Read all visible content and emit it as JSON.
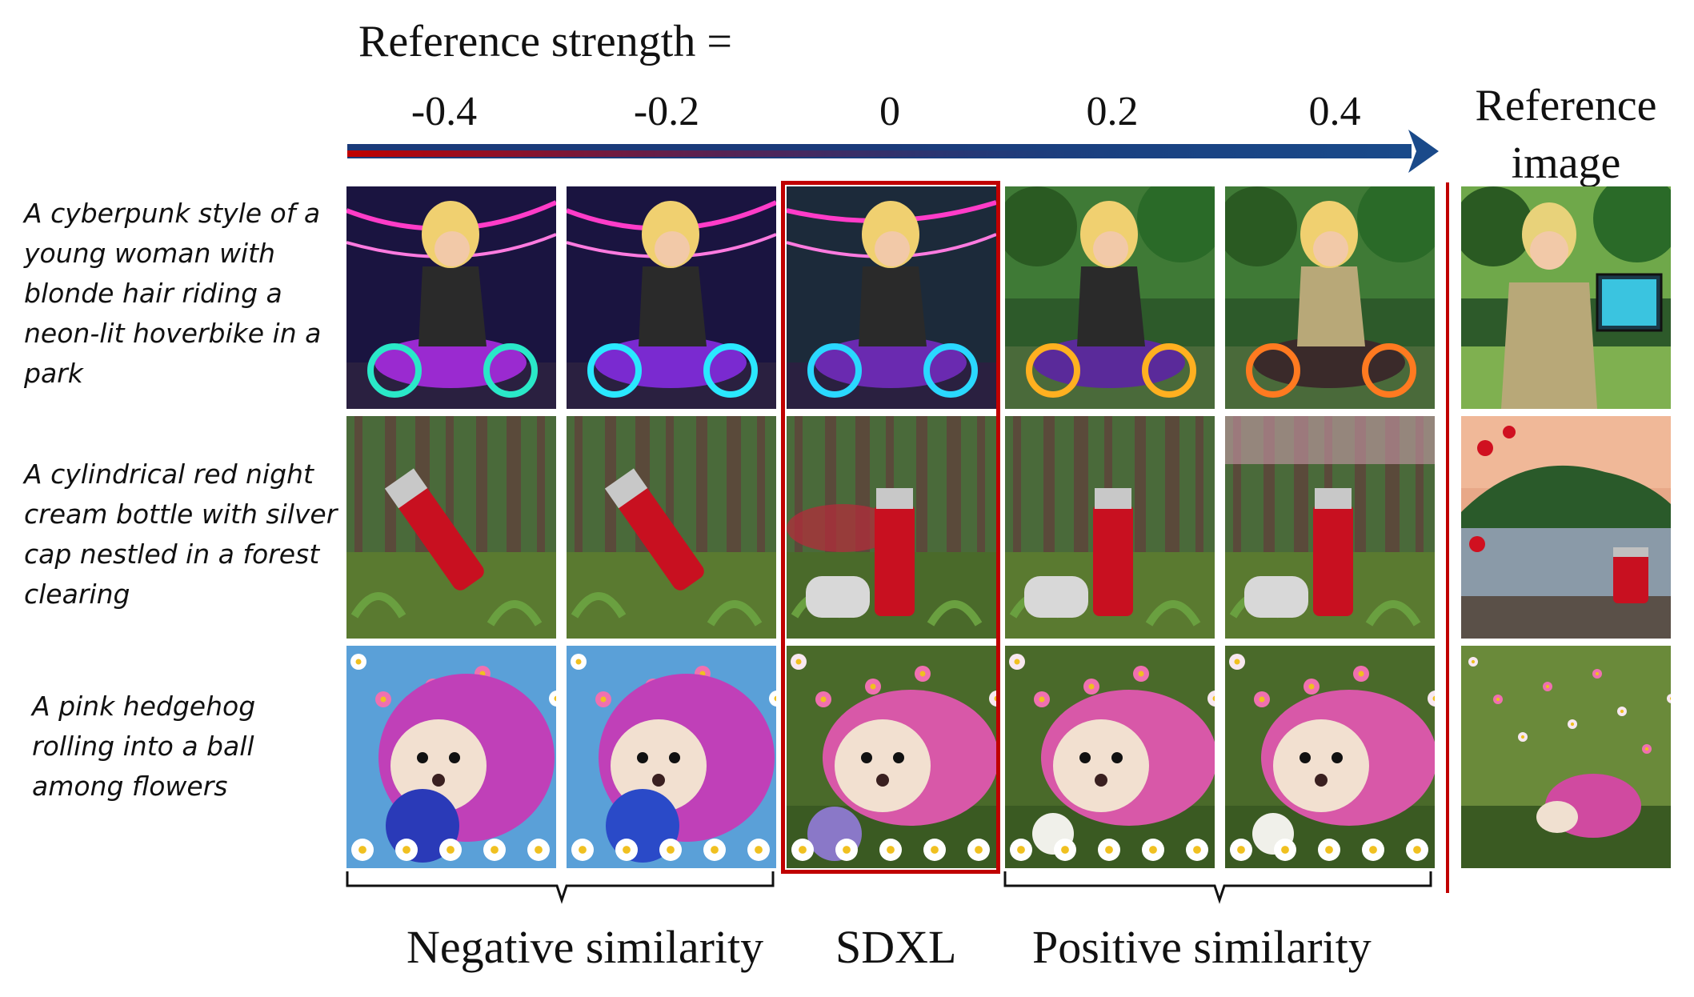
{
  "header": {
    "title": "Reference strength ="
  },
  "strengths": [
    "-0.4",
    "-0.2",
    "0",
    "0.2",
    "0.4"
  ],
  "reference_label": "Reference image",
  "rows": [
    {
      "prompt": "A cyberpunk style of a young woman with blonde hair riding a neon-lit hoverbike in a park",
      "subject": "woman on hoverbike"
    },
    {
      "prompt": "A cylindrical red night cream bottle with silver cap nestled in a forest clearing",
      "subject": "red bottle"
    },
    {
      "prompt": "A pink hedgehog rolling into a ball among flowers",
      "subject": "pink hedgehog"
    }
  ],
  "groups": {
    "negative": "Negative similarity",
    "baseline": "SDXL",
    "positive": "Positive similarity"
  },
  "colors": {
    "highlight": "#c00000",
    "arrow_start": "#c00000",
    "arrow_end": "#1a3a7a"
  }
}
